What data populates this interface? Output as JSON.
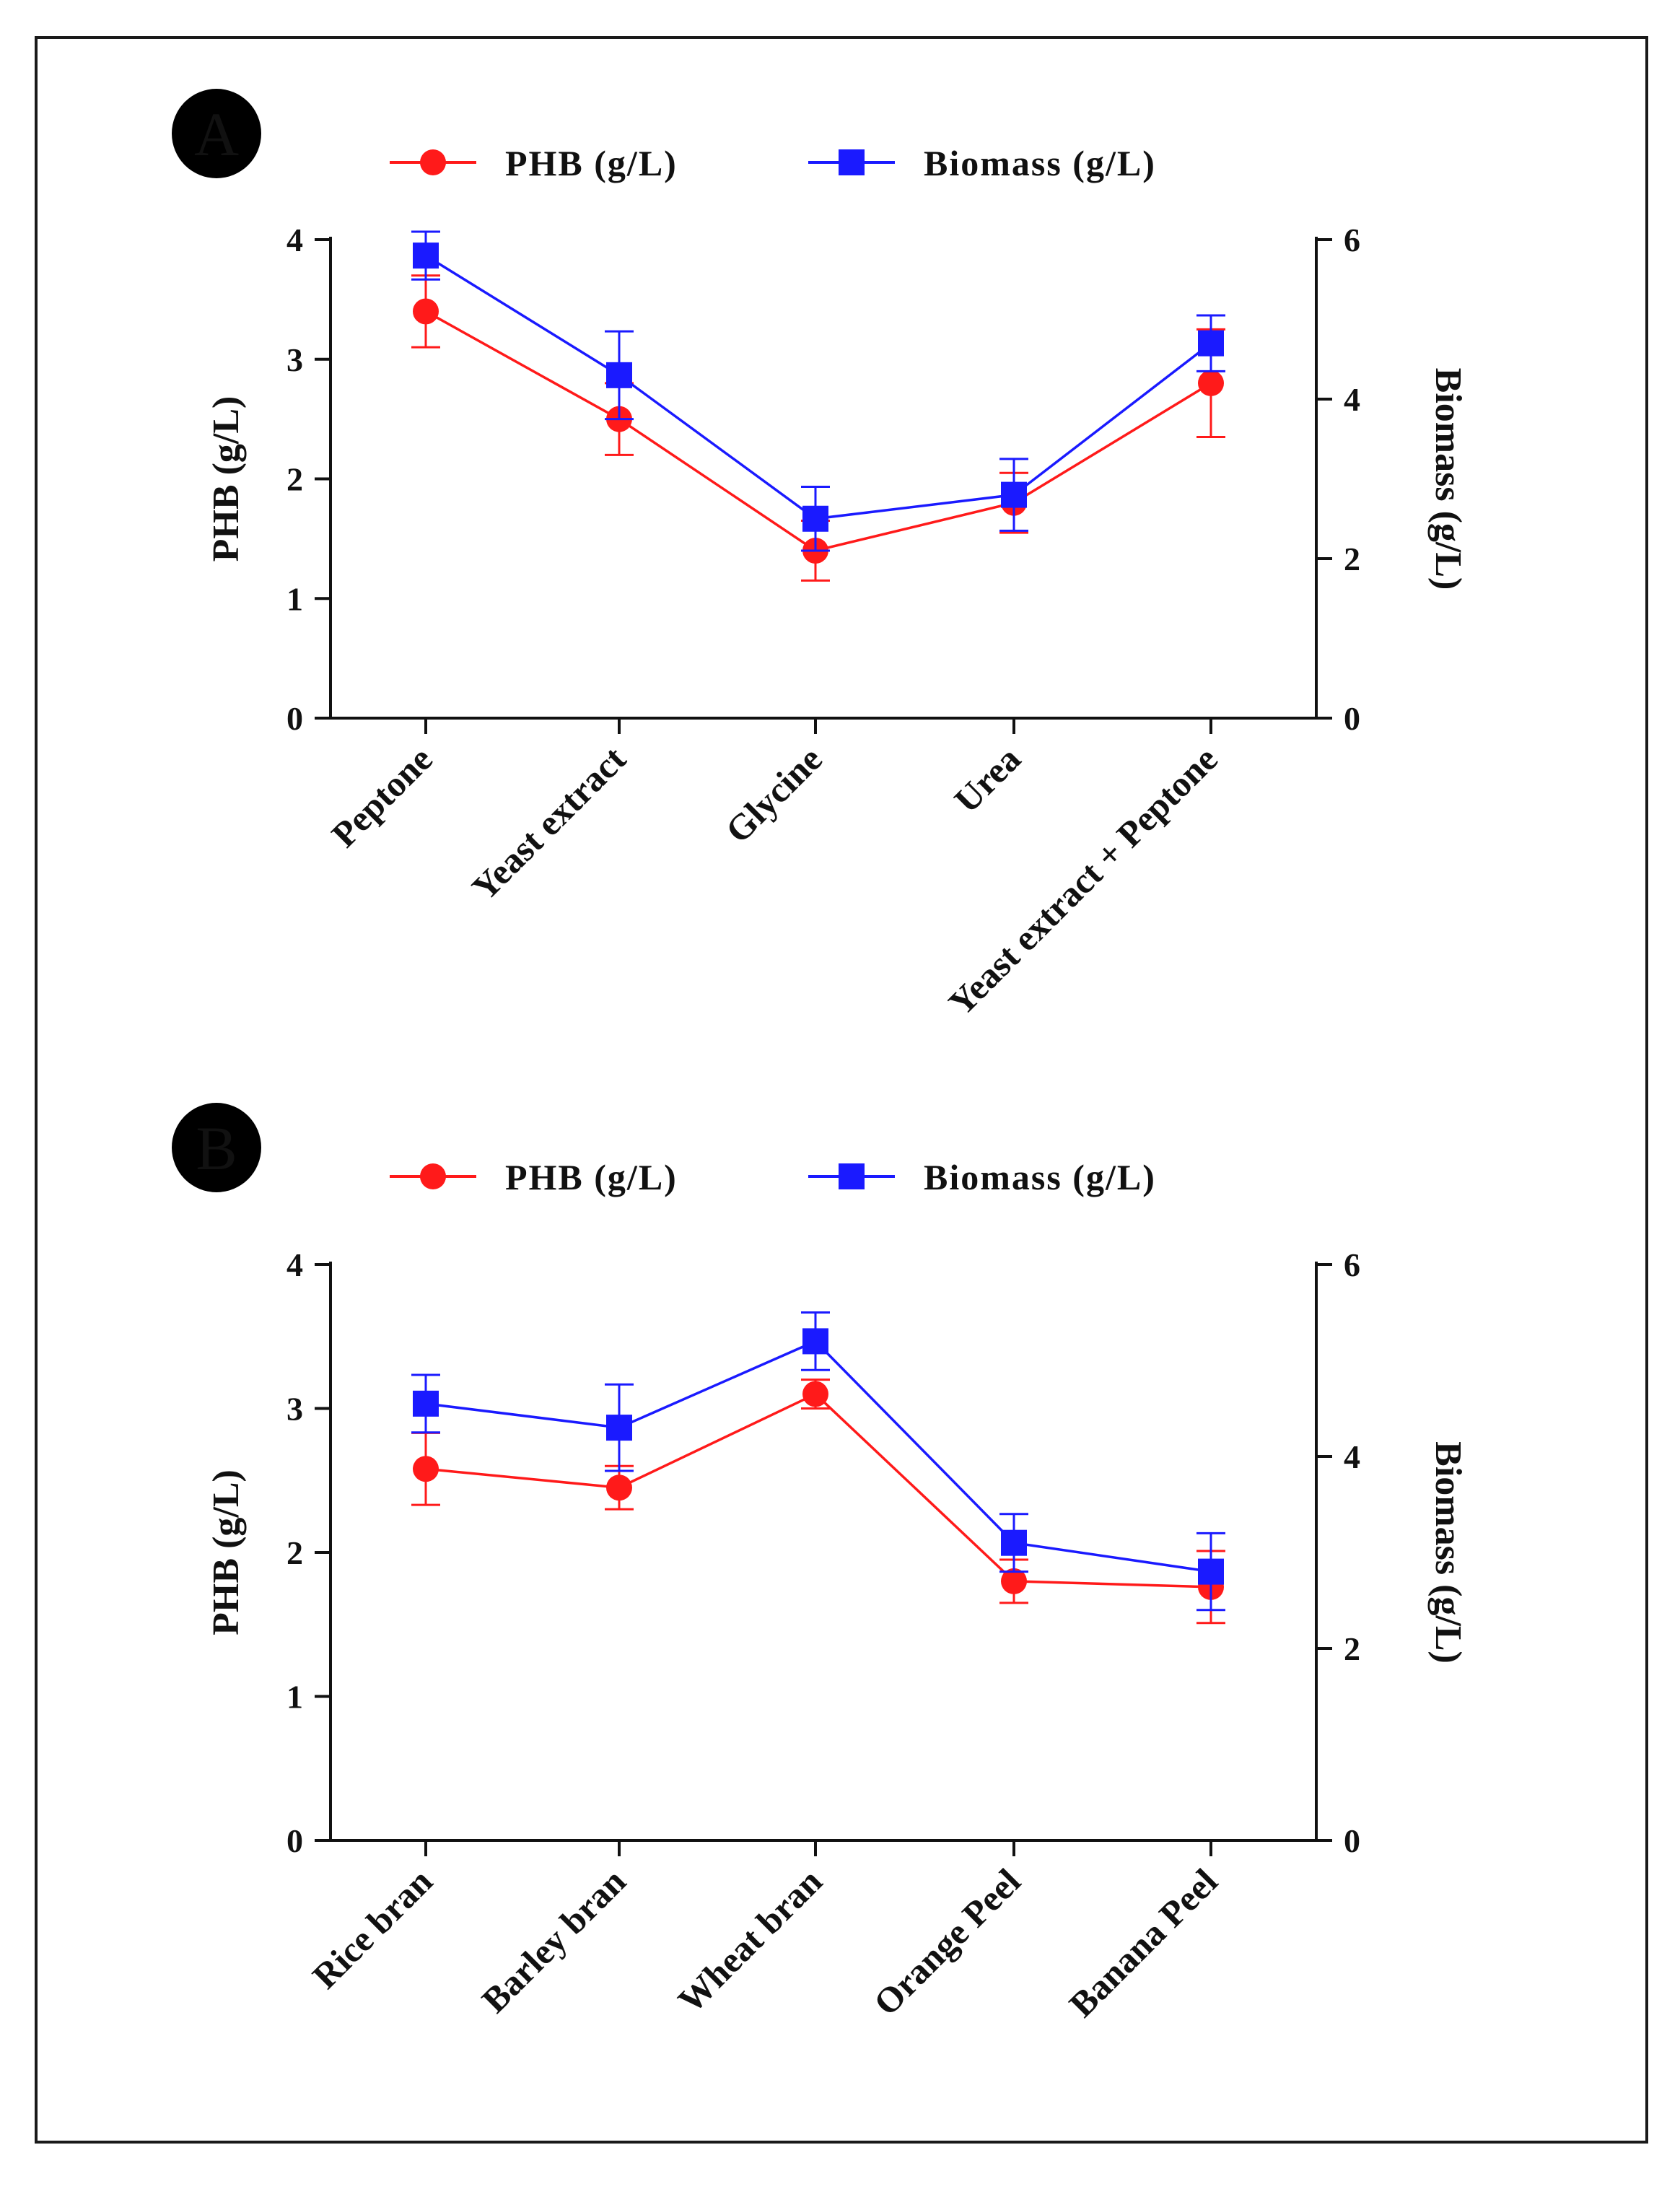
{
  "figure": {
    "panels": [
      {
        "letter": "A"
      },
      {
        "letter": "B"
      }
    ]
  },
  "chart_data": [
    {
      "panel": "A",
      "type": "line",
      "title": "",
      "categories": [
        "Peptone",
        "Yeast extract",
        "Glycine",
        "Urea",
        "Yeast extract + Peptone"
      ],
      "ylabel": "PHB (g/L)",
      "y2label": "Biomass (g/L)",
      "ylim": [
        0,
        4
      ],
      "y2lim": [
        0,
        6
      ],
      "yticks": [
        "0",
        "1",
        "2",
        "3",
        "4"
      ],
      "y2ticks": [
        "0",
        "2",
        "4",
        "6"
      ],
      "legend_position": "top",
      "series": [
        {
          "name": "PHB (g/L)",
          "axis": "left",
          "color": "#ff1a1a",
          "marker": "circle",
          "values": [
            3.4,
            2.5,
            1.4,
            1.8,
            2.8
          ],
          "errors": [
            0.3,
            0.3,
            0.25,
            0.25,
            0.45
          ]
        },
        {
          "name": "Biomass (g/L)",
          "axis": "right",
          "color": "#1a1aff",
          "marker": "square",
          "values": [
            5.8,
            4.3,
            2.5,
            2.8,
            4.7
          ],
          "errors": [
            0.3,
            0.55,
            0.4,
            0.45,
            0.35
          ]
        }
      ]
    },
    {
      "panel": "B",
      "type": "line",
      "title": "",
      "categories": [
        "Rice bran",
        "Barley bran",
        "Wheat bran",
        "Orange Peel",
        "Banana Peel"
      ],
      "ylabel": "PHB (g/L)",
      "y2label": "Biomass (g/L)",
      "ylim": [
        0,
        4
      ],
      "y2lim": [
        0,
        6
      ],
      "yticks": [
        "0",
        "1",
        "2",
        "3",
        "4"
      ],
      "y2ticks": [
        "0",
        "2",
        "4",
        "6"
      ],
      "legend_position": "top",
      "series": [
        {
          "name": "PHB (g/L)",
          "axis": "left",
          "color": "#ff1a1a",
          "marker": "circle",
          "values": [
            2.58,
            2.45,
            3.1,
            1.8,
            1.76
          ],
          "errors": [
            0.25,
            0.15,
            0.1,
            0.15,
            0.25
          ]
        },
        {
          "name": "Biomass (g/L)",
          "axis": "right",
          "color": "#1a1aff",
          "marker": "square",
          "values": [
            4.55,
            4.3,
            5.2,
            3.1,
            2.8
          ],
          "errors": [
            0.3,
            0.45,
            0.3,
            0.3,
            0.4
          ]
        }
      ]
    }
  ]
}
